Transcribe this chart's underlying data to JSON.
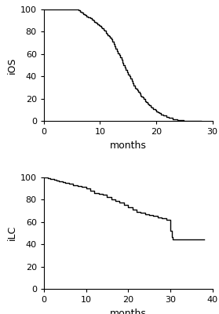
{
  "plot1": {
    "ylabel": "iOS",
    "xlabel": "months",
    "xlim": [
      0,
      30
    ],
    "ylim": [
      0,
      100
    ],
    "xticks": [
      0,
      10,
      20,
      30
    ],
    "yticks": [
      0,
      20,
      40,
      60,
      80,
      100
    ],
    "curve": {
      "times": [
        0,
        6,
        6.2,
        6.5,
        6.8,
        7.0,
        7.3,
        7.6,
        7.9,
        8.2,
        8.5,
        8.8,
        9.0,
        9.2,
        9.5,
        9.8,
        10.0,
        10.2,
        10.4,
        10.6,
        10.8,
        11.0,
        11.2,
        11.4,
        11.6,
        11.8,
        12.0,
        12.2,
        12.4,
        12.6,
        12.8,
        13.0,
        13.2,
        13.4,
        13.6,
        13.8,
        14.0,
        14.2,
        14.4,
        14.6,
        14.8,
        15.0,
        15.2,
        15.4,
        15.6,
        15.8,
        16.0,
        16.2,
        16.4,
        16.6,
        16.8,
        17.0,
        17.2,
        17.4,
        17.6,
        17.8,
        18.0,
        18.2,
        18.4,
        18.6,
        18.8,
        19.0,
        19.2,
        19.5,
        19.8,
        20.0,
        20.3,
        20.6,
        20.9,
        21.2,
        21.5,
        21.8,
        22.0,
        22.3,
        22.6,
        22.9,
        23.2,
        23.5,
        23.8,
        24.0,
        24.3,
        24.6,
        24.9,
        25.2,
        25.5,
        25.8,
        26.0,
        26.3,
        26.5,
        27.0,
        28.0
      ],
      "survival": [
        100,
        100,
        99,
        98,
        97,
        96,
        95,
        94,
        93,
        92,
        91,
        90,
        89,
        88,
        87,
        86,
        85,
        84,
        83,
        82,
        81,
        79,
        78,
        77,
        76,
        75,
        73,
        71,
        69,
        67,
        65,
        63,
        61,
        59,
        57,
        55,
        52,
        50,
        48,
        46,
        44,
        42,
        40,
        38,
        36,
        34,
        32,
        30,
        29,
        28,
        26,
        25,
        23,
        22,
        21,
        20,
        18,
        17,
        16,
        15,
        14,
        13,
        12,
        11,
        10,
        9,
        8,
        7,
        6,
        5,
        5,
        4,
        4,
        3,
        3,
        2,
        2,
        2,
        1,
        1,
        1,
        1,
        0.5,
        0.5,
        0.2,
        0.1,
        0.1,
        0,
        0,
        0,
        0
      ]
    }
  },
  "plot2": {
    "ylabel": "iLC",
    "xlabel": "months",
    "xlim": [
      0,
      40
    ],
    "ylim": [
      0,
      100
    ],
    "xticks": [
      0,
      10,
      20,
      30,
      40
    ],
    "yticks": [
      0,
      20,
      40,
      60,
      80,
      100
    ],
    "curve": {
      "times": [
        0,
        0.5,
        1.0,
        1.5,
        2.0,
        2.5,
        3.0,
        3.5,
        4.0,
        4.5,
        5.0,
        5.5,
        6.0,
        7.0,
        8.0,
        9.0,
        10.0,
        11.0,
        12.0,
        13.0,
        14.0,
        15.0,
        16.0,
        17.0,
        18.0,
        19.0,
        20.0,
        21.0,
        22.0,
        23.0,
        24.0,
        25.0,
        26.0,
        27.0,
        28.0,
        29.0,
        30.0,
        30.3,
        30.6,
        31.0,
        31.5,
        32.0,
        33.0,
        34.0,
        35.0,
        36.0,
        37.0,
        38.0
      ],
      "survival": [
        100,
        99.5,
        99,
        98.5,
        98,
        97.5,
        97,
        96.5,
        96,
        95.5,
        95,
        94.5,
        94,
        93,
        92,
        91,
        90,
        88,
        86,
        85,
        84,
        82,
        80,
        79,
        77,
        75,
        73,
        71,
        69,
        68,
        67,
        66,
        65,
        64,
        63,
        62,
        52,
        46,
        44,
        44,
        44,
        44,
        44,
        44,
        44,
        44,
        44,
        44
      ]
    }
  },
  "line_color": "#000000",
  "line_width": 1.0,
  "background_color": "#ffffff",
  "tick_label_fontsize": 8,
  "axis_label_fontsize": 9
}
